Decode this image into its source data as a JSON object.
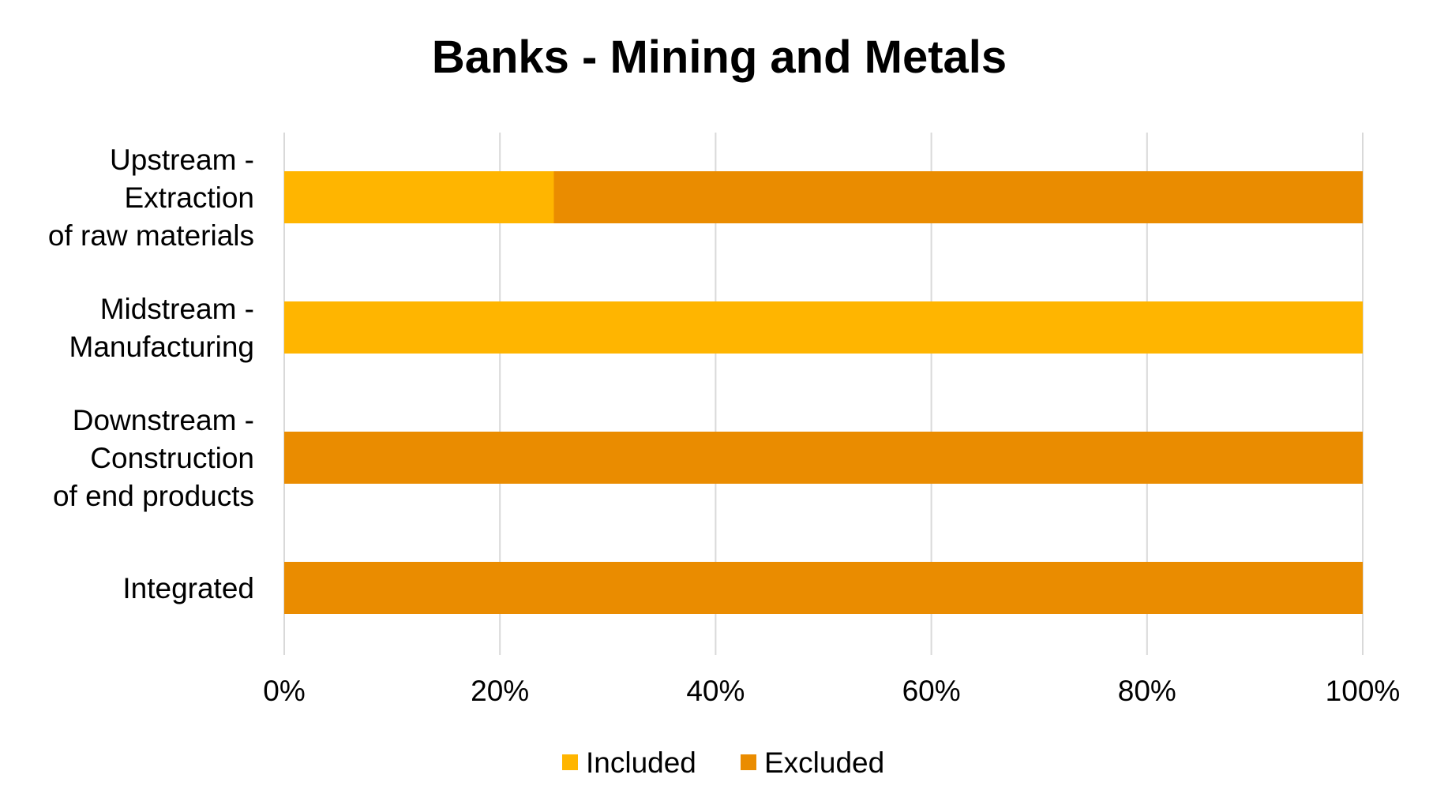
{
  "chart_data": {
    "type": "bar",
    "orientation": "horizontal",
    "stacked": "percent",
    "title": "Banks - Mining and Metals",
    "categories": [
      [
        "Upstream -",
        "Extraction",
        "of raw materials"
      ],
      [
        "Midstream -",
        "Manufacturing"
      ],
      [
        "Downstream -",
        "Construction",
        "of end products"
      ],
      [
        "Integrated"
      ]
    ],
    "series": [
      {
        "name": "Included",
        "color": "#FFB500",
        "values": [
          25,
          100,
          0,
          0
        ]
      },
      {
        "name": "Excluded",
        "color": "#EA8C00",
        "values": [
          75,
          0,
          100,
          100
        ]
      }
    ],
    "xlim": [
      0,
      100
    ],
    "xticks": [
      "0%",
      "20%",
      "40%",
      "60%",
      "80%",
      "100%"
    ],
    "grid": true,
    "gridline_color": "#D9D9D9",
    "legend": "bottom-center"
  }
}
